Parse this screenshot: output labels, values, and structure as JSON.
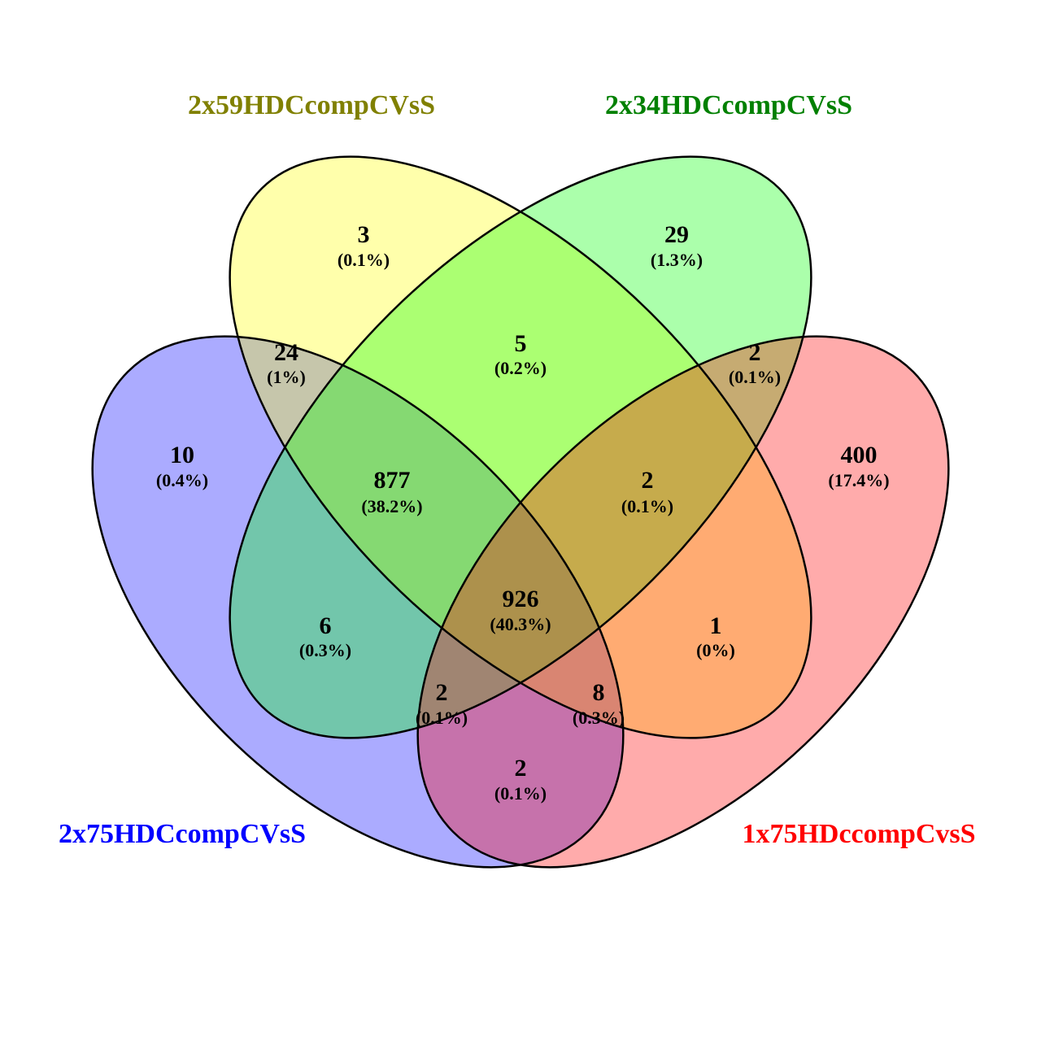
{
  "diagram": {
    "type": "venn-4",
    "sets": [
      {
        "key": "blue",
        "name": "2x75HDCcompCVsS",
        "fill": "#0000ff",
        "label_color": "#0000ff"
      },
      {
        "key": "yellow",
        "name": "2x59HDCcompCVsS",
        "fill": "#ffff00",
        "label_color": "#808000"
      },
      {
        "key": "green",
        "name": "2x34HDCcompCVsS",
        "fill": "#00ff00",
        "label_color": "#008000"
      },
      {
        "key": "red",
        "name": "1x75HDccompCvsS",
        "fill": "#ff0000",
        "label_color": "#ff0000"
      }
    ],
    "regions": [
      {
        "sets": [
          "2x75HDCcompCVsS"
        ],
        "count": "10",
        "percent": "(0.4%)"
      },
      {
        "sets": [
          "2x59HDCcompCVsS"
        ],
        "count": "3",
        "percent": "(0.1%)"
      },
      {
        "sets": [
          "2x34HDCcompCVsS"
        ],
        "count": "29",
        "percent": "(1.3%)"
      },
      {
        "sets": [
          "1x75HDccompCvsS"
        ],
        "count": "400",
        "percent": "(17.4%)"
      },
      {
        "sets": [
          "2x75HDCcompCVsS",
          "2x59HDCcompCVsS"
        ],
        "count": "24",
        "percent": "(1%)"
      },
      {
        "sets": [
          "2x59HDCcompCVsS",
          "2x34HDCcompCVsS"
        ],
        "count": "5",
        "percent": "(0.2%)"
      },
      {
        "sets": [
          "2x34HDCcompCVsS",
          "1x75HDccompCvsS"
        ],
        "count": "2",
        "percent": "(0.1%)"
      },
      {
        "sets": [
          "2x75HDCcompCVsS",
          "2x59HDCcompCVsS",
          "2x34HDCcompCVsS"
        ],
        "count": "877",
        "percent": "(38.2%)"
      },
      {
        "sets": [
          "2x59HDCcompCVsS",
          "2x34HDCcompCVsS",
          "1x75HDccompCvsS"
        ],
        "count": "2",
        "percent": "(0.1%)"
      },
      {
        "sets": [
          "2x75HDCcompCVsS",
          "2x34HDCcompCVsS"
        ],
        "count": "6",
        "percent": "(0.3%)"
      },
      {
        "sets": [
          "2x59HDCcompCVsS",
          "1x75HDccompCvsS"
        ],
        "count": "1",
        "percent": "(0%)"
      },
      {
        "sets": [
          "2x75HDCcompCVsS",
          "2x59HDCcompCVsS",
          "2x34HDCcompCVsS",
          "1x75HDccompCvsS"
        ],
        "count": "926",
        "percent": "(40.3%)"
      },
      {
        "sets": [
          "2x75HDCcompCVsS",
          "2x34HDCcompCVsS",
          "1x75HDccompCvsS"
        ],
        "count": "2",
        "percent": "(0.1%)"
      },
      {
        "sets": [
          "2x75HDCcompCVsS",
          "2x59HDCcompCVsS",
          "1x75HDccompCvsS"
        ],
        "count": "8",
        "percent": "(0.3%)"
      },
      {
        "sets": [
          "2x75HDCcompCVsS",
          "1x75HDccompCvsS"
        ],
        "count": "2",
        "percent": "(0.1%)"
      }
    ]
  }
}
